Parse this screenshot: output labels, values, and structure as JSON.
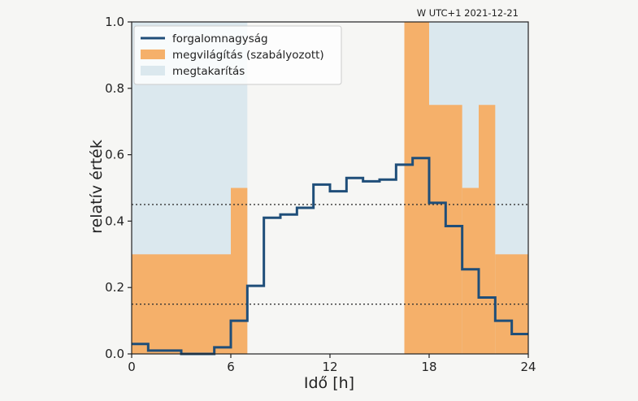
{
  "chart_data": {
    "type": "line",
    "xlabel": "Idő [h]",
    "ylabel": "relatív érték",
    "corner_label": "W UTC+1 2021-12-21",
    "xlim": [
      0,
      24
    ],
    "ylim": [
      0,
      1.0
    ],
    "xticks": [
      0,
      6,
      12,
      18,
      24
    ],
    "yticks": [
      0.0,
      0.2,
      0.4,
      0.6,
      0.8,
      1.0
    ],
    "xtick_labels": [
      "0",
      "6",
      "12",
      "18",
      "24"
    ],
    "ytick_labels": [
      "0.0",
      "0.2",
      "0.4",
      "0.6",
      "0.8",
      "1.0"
    ],
    "grid": false,
    "legend_position": "top-left",
    "reference_lines": [
      {
        "y": 0.45,
        "style": "dotted",
        "color": "#333333"
      },
      {
        "y": 0.15,
        "style": "dotted",
        "color": "#333333"
      }
    ],
    "series": [
      {
        "name": "forgalomnagyság",
        "kind": "step-line",
        "color": "#1f4e79",
        "x_edges": [
          0,
          1,
          2,
          3,
          4,
          5,
          6,
          7,
          8,
          9,
          10,
          11,
          12,
          13,
          14,
          15,
          16,
          17,
          18,
          19,
          20,
          21,
          22,
          23,
          24
        ],
        "values": [
          0.03,
          0.01,
          0.01,
          0.0,
          0.0,
          0.02,
          0.1,
          0.205,
          0.41,
          0.42,
          0.44,
          0.51,
          0.49,
          0.53,
          0.52,
          0.525,
          0.57,
          0.59,
          0.455,
          0.385,
          0.255,
          0.17,
          0.1,
          0.06
        ]
      },
      {
        "name": "megvilágítás (szabályozott)",
        "kind": "step-fill",
        "color": "#f5b06a",
        "segments": [
          {
            "x0": 0,
            "x1": 6,
            "y": 0.3
          },
          {
            "x0": 6,
            "x1": 7,
            "y": 0.5
          },
          {
            "x0": 16.5,
            "x1": 18,
            "y": 1.0
          },
          {
            "x0": 18,
            "x1": 20,
            "y": 0.75
          },
          {
            "x0": 20,
            "x1": 21,
            "y": 0.5
          },
          {
            "x0": 21,
            "x1": 22,
            "y": 0.75
          },
          {
            "x0": 22,
            "x1": 24,
            "y": 0.3
          }
        ]
      },
      {
        "name": "megtakarítás",
        "kind": "span",
        "color": "#dbe8ee",
        "spans": [
          {
            "x0": 0,
            "x1": 7
          },
          {
            "x0": 16.5,
            "x1": 24
          }
        ]
      }
    ]
  }
}
